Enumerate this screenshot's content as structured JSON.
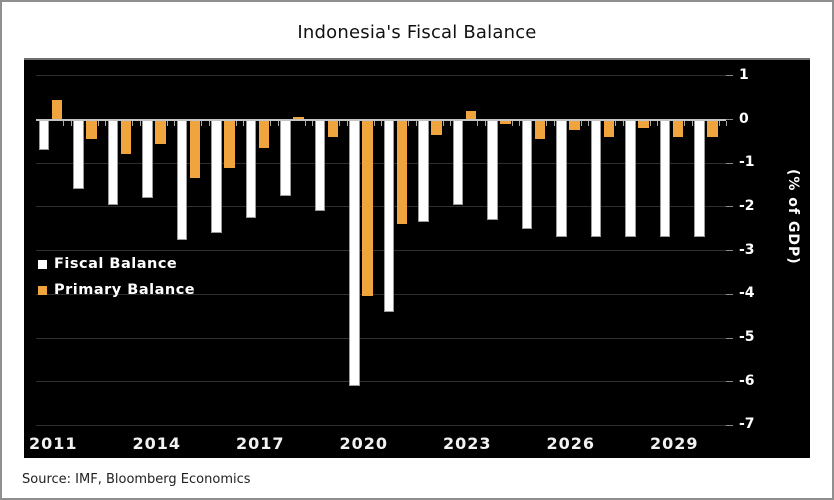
{
  "chart_data": {
    "type": "bar",
    "title": "Indonesia's Fiscal Balance",
    "categories": [
      2011,
      2012,
      2013,
      2014,
      2015,
      2016,
      2017,
      2018,
      2019,
      2020,
      2021,
      2022,
      2023,
      2024,
      2025,
      2026,
      2027,
      2028,
      2029,
      2030
    ],
    "series": [
      {
        "name": "Fiscal Balance",
        "color": "#ffffff",
        "values": [
          -0.7,
          -1.6,
          -1.95,
          -1.8,
          -2.75,
          -2.6,
          -2.25,
          -1.75,
          -2.1,
          -6.1,
          -4.4,
          -2.35,
          -1.95,
          -2.3,
          -2.5,
          -2.7,
          -2.7,
          -2.7,
          -2.7,
          -2.7
        ]
      },
      {
        "name": "Primary Balance",
        "color": "#f0a43e",
        "values": [
          0.45,
          -0.45,
          -0.8,
          -0.55,
          -1.35,
          -1.1,
          -0.65,
          0.05,
          -0.4,
          -4.05,
          -2.4,
          -0.35,
          0.2,
          -0.1,
          -0.45,
          -0.25,
          -0.4,
          -0.2,
          -0.4,
          -0.4
        ]
      }
    ],
    "ylabel": "(% of GDP)",
    "ylim": [
      -7,
      1
    ],
    "yticks": [
      1,
      0,
      -1,
      -2,
      -3,
      -4,
      -5,
      -6,
      -7
    ],
    "xtick_labels": [
      "2011",
      "2014",
      "2017",
      "2020",
      "2023",
      "2026",
      "2029"
    ],
    "xtick_indices": [
      0,
      3,
      6,
      9,
      12,
      15,
      18
    ],
    "grid": true,
    "legend_position": "middle-left",
    "source": "Source: IMF, Bloomberg Economics",
    "colors": {
      "panel_background": "#000000",
      "page_background": "#ffffff",
      "frame_border": "#8f8f8f",
      "gridline": "#2e2e2e",
      "zero_line": "#c4c4c4",
      "axis_text": "#ffffff",
      "title_text": "#111111",
      "source_text": "#222222"
    }
  }
}
